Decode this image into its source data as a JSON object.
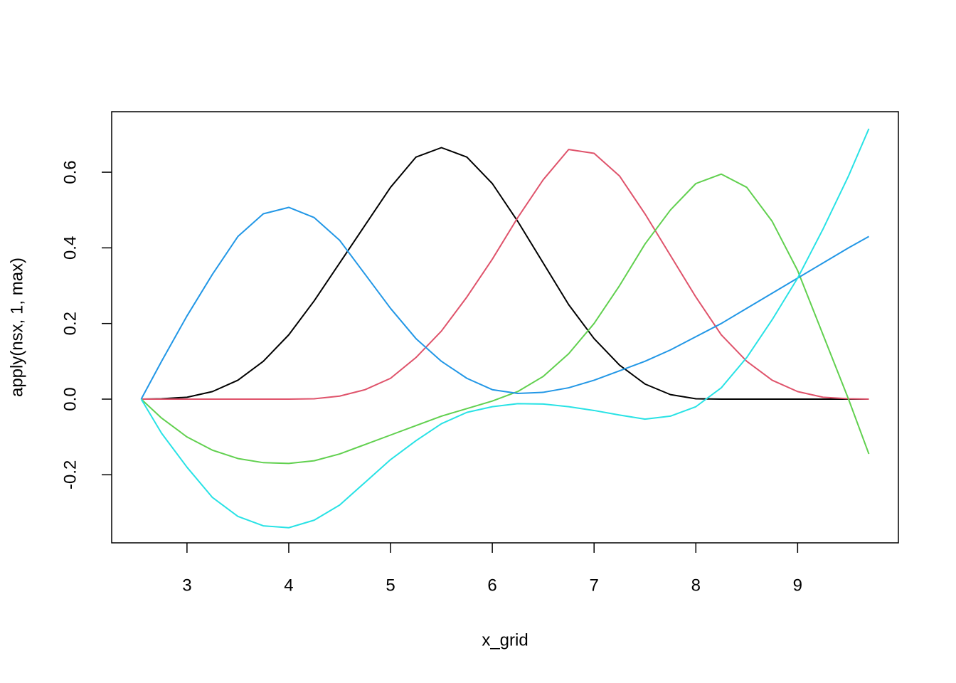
{
  "chart_data": {
    "type": "line",
    "xlabel": "x_grid",
    "ylabel": "apply(nsx, 1, max)",
    "x": [
      2.55,
      2.75,
      3,
      3.25,
      3.5,
      3.75,
      4,
      4.25,
      4.5,
      4.75,
      5,
      5.25,
      5.5,
      5.75,
      6,
      6.25,
      6.5,
      6.75,
      7,
      7.25,
      7.5,
      7.75,
      8,
      8.25,
      8.5,
      8.75,
      9,
      9.25,
      9.5,
      9.7
    ],
    "series": [
      {
        "color": "#000000",
        "values": [
          0,
          0.001,
          0.005,
          0.02,
          0.05,
          0.1,
          0.17,
          0.26,
          0.36,
          0.46,
          0.56,
          0.64,
          0.665,
          0.64,
          0.57,
          0.47,
          0.36,
          0.25,
          0.16,
          0.09,
          0.04,
          0.012,
          0.001,
          0,
          0,
          0,
          0,
          0,
          0,
          0
        ]
      },
      {
        "color": "#DF536B",
        "values": [
          0,
          0,
          0,
          0,
          0,
          0,
          0,
          0.001,
          0.008,
          0.025,
          0.055,
          0.11,
          0.18,
          0.27,
          0.37,
          0.48,
          0.58,
          0.66,
          0.65,
          0.59,
          0.49,
          0.38,
          0.27,
          0.17,
          0.1,
          0.05,
          0.02,
          0.005,
          0.001,
          0
        ]
      },
      {
        "color": "#61D04F",
        "values": [
          0,
          -0.05,
          -0.1,
          -0.135,
          -0.157,
          -0.168,
          -0.17,
          -0.163,
          -0.145,
          -0.12,
          -0.095,
          -0.07,
          -0.045,
          -0.025,
          -0.005,
          0.02,
          0.06,
          0.12,
          0.2,
          0.3,
          0.41,
          0.5,
          0.57,
          0.595,
          0.56,
          0.47,
          0.34,
          0.17,
          0,
          -0.145
        ]
      },
      {
        "color": "#2297E6",
        "values": [
          0,
          0.1,
          0.22,
          0.33,
          0.43,
          0.49,
          0.507,
          0.48,
          0.42,
          0.33,
          0.24,
          0.16,
          0.1,
          0.055,
          0.025,
          0.015,
          0.018,
          0.03,
          0.05,
          0.075,
          0.1,
          0.13,
          0.165,
          0.2,
          0.24,
          0.28,
          0.32,
          0.36,
          0.4,
          0.43
        ]
      },
      {
        "color": "#28E2E5",
        "values": [
          0,
          -0.09,
          -0.18,
          -0.26,
          -0.31,
          -0.335,
          -0.34,
          -0.32,
          -0.28,
          -0.22,
          -0.16,
          -0.11,
          -0.065,
          -0.035,
          -0.02,
          -0.012,
          -0.013,
          -0.02,
          -0.03,
          -0.042,
          -0.053,
          -0.045,
          -0.02,
          0.03,
          0.11,
          0.21,
          0.32,
          0.45,
          0.59,
          0.715
        ]
      }
    ],
    "xlim": [
      2.26,
      9.99
    ],
    "ylim": [
      -0.38,
      0.76
    ],
    "xticks": [
      3,
      4,
      5,
      6,
      7,
      8,
      9
    ],
    "yticks": [
      -0.2,
      {
        "value": 0,
        "label": "0.0"
      },
      0.2,
      0.4,
      0.6
    ]
  }
}
